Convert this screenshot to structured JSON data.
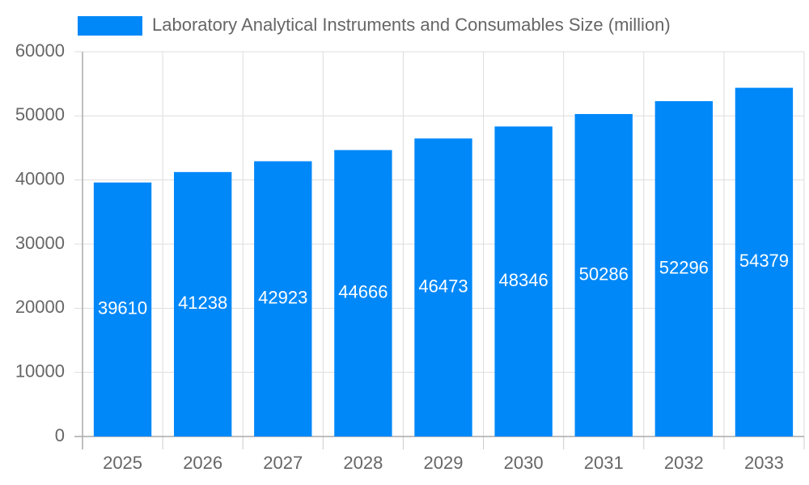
{
  "chart_data": {
    "type": "bar",
    "categories": [
      "2025",
      "2026",
      "2027",
      "2028",
      "2029",
      "2030",
      "2031",
      "2032",
      "2033"
    ],
    "series": [
      {
        "name": "Laboratory Analytical Instruments and Consumables Size (million)",
        "color": "#0088f9",
        "values": [
          39610,
          41238,
          42923,
          44666,
          46473,
          48346,
          50286,
          52296,
          54379
        ]
      }
    ],
    "ylim": [
      0,
      60000
    ],
    "yticks": [
      0,
      10000,
      20000,
      30000,
      40000,
      50000,
      60000
    ],
    "grid": true,
    "legend": "top"
  }
}
